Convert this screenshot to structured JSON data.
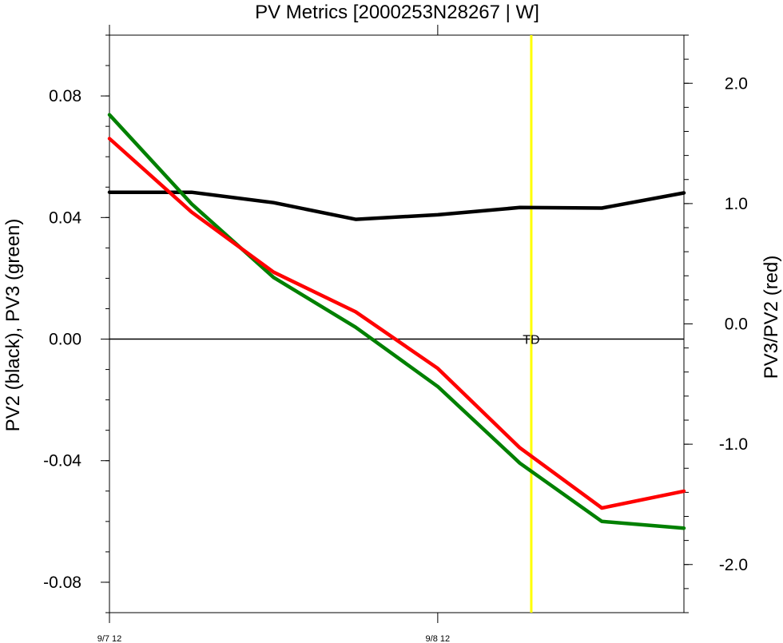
{
  "chart_data": {
    "type": "line",
    "title": "PV Metrics [2000253N28267 | W]",
    "ylabel_left": "PV2 (black), PV3 (green)",
    "ylabel_right": "PV3/PV2 (red)",
    "x": [
      0,
      1,
      2,
      3,
      4,
      5,
      6,
      7
    ],
    "xlim": [
      0,
      7
    ],
    "x_tick_positions": [
      0,
      4
    ],
    "x_tick_labels": [
      "9/7 12",
      "9/8 12"
    ],
    "ylim_left": [
      -0.09,
      0.1
    ],
    "ylim_right": [
      -2.4,
      2.4
    ],
    "y_ticks_left": [
      "0.08",
      "0.04",
      "0.00",
      "-0.04",
      "-0.08"
    ],
    "y_tick_values_left": [
      0.08,
      0.04,
      0.0,
      -0.04,
      -0.08
    ],
    "y_ticks_right": [
      "2.0",
      "1.0",
      "0.0",
      "-1.0",
      "-2.0"
    ],
    "y_tick_values_right": [
      2.0,
      1.0,
      0.0,
      -1.0,
      -2.0
    ],
    "series": [
      {
        "name": "PV2",
        "axis": "left",
        "color": "#000000",
        "values": [
          0.0483,
          0.0483,
          0.0449,
          0.0394,
          0.0409,
          0.0433,
          0.0431,
          0.0481
        ]
      },
      {
        "name": "PV3",
        "axis": "left",
        "color": "#008000",
        "values": [
          0.0738,
          0.0445,
          0.0203,
          0.0039,
          -0.0156,
          -0.0408,
          -0.06,
          -0.0622
        ]
      },
      {
        "name": "PV3/PV2",
        "axis": "right",
        "color": "#ff0000",
        "values": [
          1.54,
          0.93,
          0.43,
          0.1,
          -0.37,
          -1.03,
          -1.53,
          -1.39
        ]
      }
    ],
    "zero_line": {
      "value": 0.0
    },
    "marker": {
      "x": 5.14,
      "label": "TD",
      "color": "#ffff00"
    },
    "grid": false
  }
}
